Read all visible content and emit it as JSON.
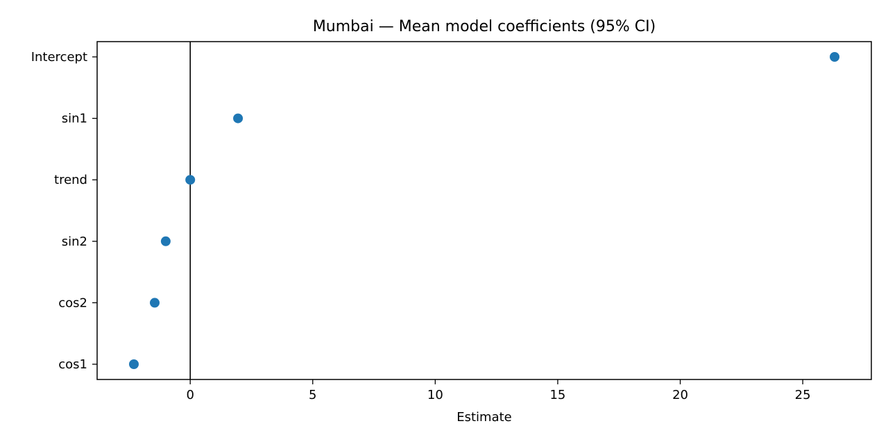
{
  "chart_data": {
    "type": "scatter",
    "title": "Mumbai — Mean model coefficients (95% CI)",
    "xlabel": "Estimate",
    "ylabel": "",
    "xlim": [
      -3.8,
      27.8
    ],
    "xticks": [
      0,
      5,
      10,
      15,
      20,
      25
    ],
    "categories": [
      "Intercept",
      "sin1",
      "trend",
      "sin2",
      "cos2",
      "cos1"
    ],
    "values": [
      26.3,
      1.95,
      0.0,
      -1.0,
      -1.45,
      -2.3
    ],
    "reference_line_x": 0,
    "marker_color": "#1f77b4",
    "grid": false,
    "legend": "none"
  }
}
